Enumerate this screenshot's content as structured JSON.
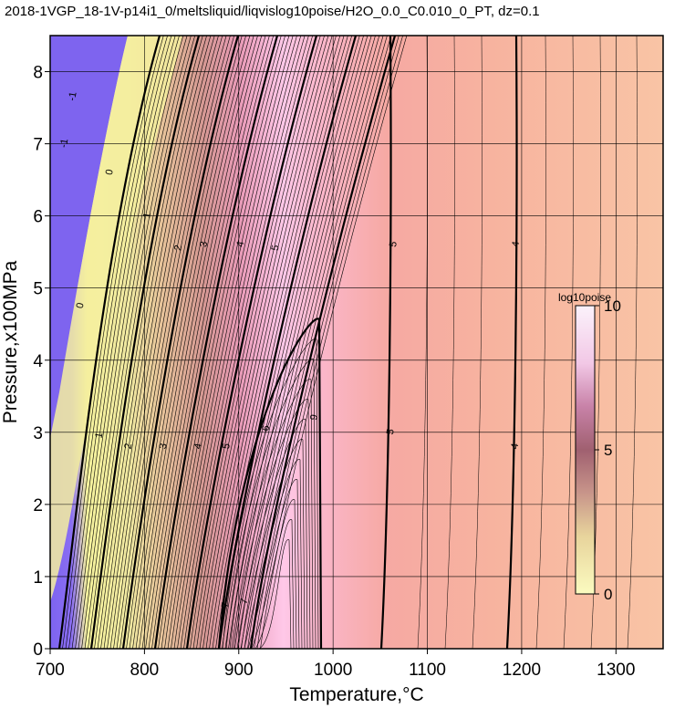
{
  "chart_data": {
    "type": "heatmap",
    "title": "2018-1VGP_18-1V-p14i1_0/meltsliquid/liqvislog10poise/H2O_0.0_C0.010_0_PT, dz=0.1",
    "xlabel": "Temperature,°C",
    "ylabel": "Pressure,x100MPa",
    "xlim": [
      700,
      1350
    ],
    "ylim": [
      0,
      8.5
    ],
    "x_ticks": [
      700,
      800,
      900,
      1000,
      1100,
      1200,
      1300
    ],
    "y_ticks": [
      0,
      1,
      2,
      3,
      4,
      5,
      6,
      7,
      8
    ],
    "grid": true,
    "colorbar": {
      "label": "log10poise",
      "range": [
        0,
        10
      ],
      "ticks": [
        0,
        5,
        10
      ],
      "colors": [
        "#f4f0b0",
        "#c07a7e",
        "#ffffff"
      ]
    },
    "contour_interval": 0.1,
    "labeled_contours": [
      {
        "level": -1,
        "x": 718,
        "y": 7.0
      },
      {
        "level": -1,
        "x": 727,
        "y": 7.65
      },
      {
        "level": 0,
        "x": 735,
        "y": 4.75
      },
      {
        "level": 0,
        "x": 766,
        "y": 6.6
      },
      {
        "level": 1,
        "x": 755,
        "y": 2.95
      },
      {
        "level": 1,
        "x": 806,
        "y": 6.0
      },
      {
        "level": 2,
        "x": 786,
        "y": 2.8
      },
      {
        "level": 2,
        "x": 839,
        "y": 5.55
      },
      {
        "level": 3,
        "x": 823,
        "y": 2.8
      },
      {
        "level": 3,
        "x": 866,
        "y": 5.6
      },
      {
        "level": 4,
        "x": 860,
        "y": 2.8
      },
      {
        "level": 4,
        "x": 905,
        "y": 5.6
      },
      {
        "level": 5,
        "x": 890,
        "y": 2.8
      },
      {
        "level": 5,
        "x": 942,
        "y": 5.55
      },
      {
        "level": 6,
        "x": 932,
        "y": 3.05
      },
      {
        "level": 7,
        "x": 889,
        "y": 0.6
      },
      {
        "level": 7,
        "x": 909,
        "y": 0.65
      },
      {
        "level": 9,
        "x": 983,
        "y": 3.2
      },
      {
        "level": 5,
        "x": 1064,
        "y": 3.0
      },
      {
        "level": 5,
        "x": 1067,
        "y": 5.6
      },
      {
        "level": 4,
        "x": 1196,
        "y": 2.8
      },
      {
        "level": 4,
        "x": 1197,
        "y": 5.6
      }
    ]
  }
}
